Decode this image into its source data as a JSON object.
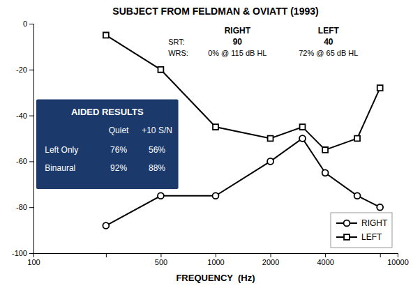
{
  "chart_data": {
    "type": "line",
    "title": "SUBJECT FROM FELDMAN & OVIATT (1993)",
    "x_label": "FREQUENCY  (Hz)",
    "log": "x",
    "xlim": [
      100,
      10000
    ],
    "xticks": [
      100,
      {
        "value": 250,
        "label": null
      },
      500,
      1000,
      2000,
      4000,
      {
        "value": 8000,
        "label": null
      },
      10000
    ],
    "ylim": [
      -100,
      0
    ],
    "yticks": [
      0,
      -20,
      -40,
      -60,
      -80,
      -100
    ],
    "grid": false,
    "legend": "lower right",
    "x": [
      250,
      500,
      1000,
      2000,
      3000,
      4000,
      6000,
      8000
    ],
    "series": [
      {
        "name": "RIGHT",
        "color": "black",
        "marker": "circle",
        "line_style": "solid",
        "values": [
          -88,
          -75,
          -75,
          -60,
          -50,
          -65,
          -75,
          -80
        ]
      },
      {
        "name": "LEFT",
        "color": "black",
        "marker": "square",
        "line_style": "solid",
        "values": [
          -5,
          -20,
          -45,
          -50,
          -45,
          -55,
          -50,
          -28
        ]
      }
    ],
    "annotations": {
      "labels": [
        "SRT:",
        "WRS:"
      ],
      "columns": [
        {
          "name": "RIGHT",
          "srt": "90",
          "wrs": "0% @ 115 dB HL"
        },
        {
          "name": "LEFT",
          "srt": "40",
          "wrs": "72% @ 65 dB HL"
        }
      ]
    },
    "table": {
      "title": "AIDED RESULTS",
      "columns": [
        "Quiet",
        "+10 S/N"
      ],
      "rows": [
        [
          "Left Only",
          "76%",
          "56%"
        ],
        [
          "Binaural",
          "92%",
          "88%"
        ]
      ],
      "color": "#1B3A6B"
    }
  }
}
